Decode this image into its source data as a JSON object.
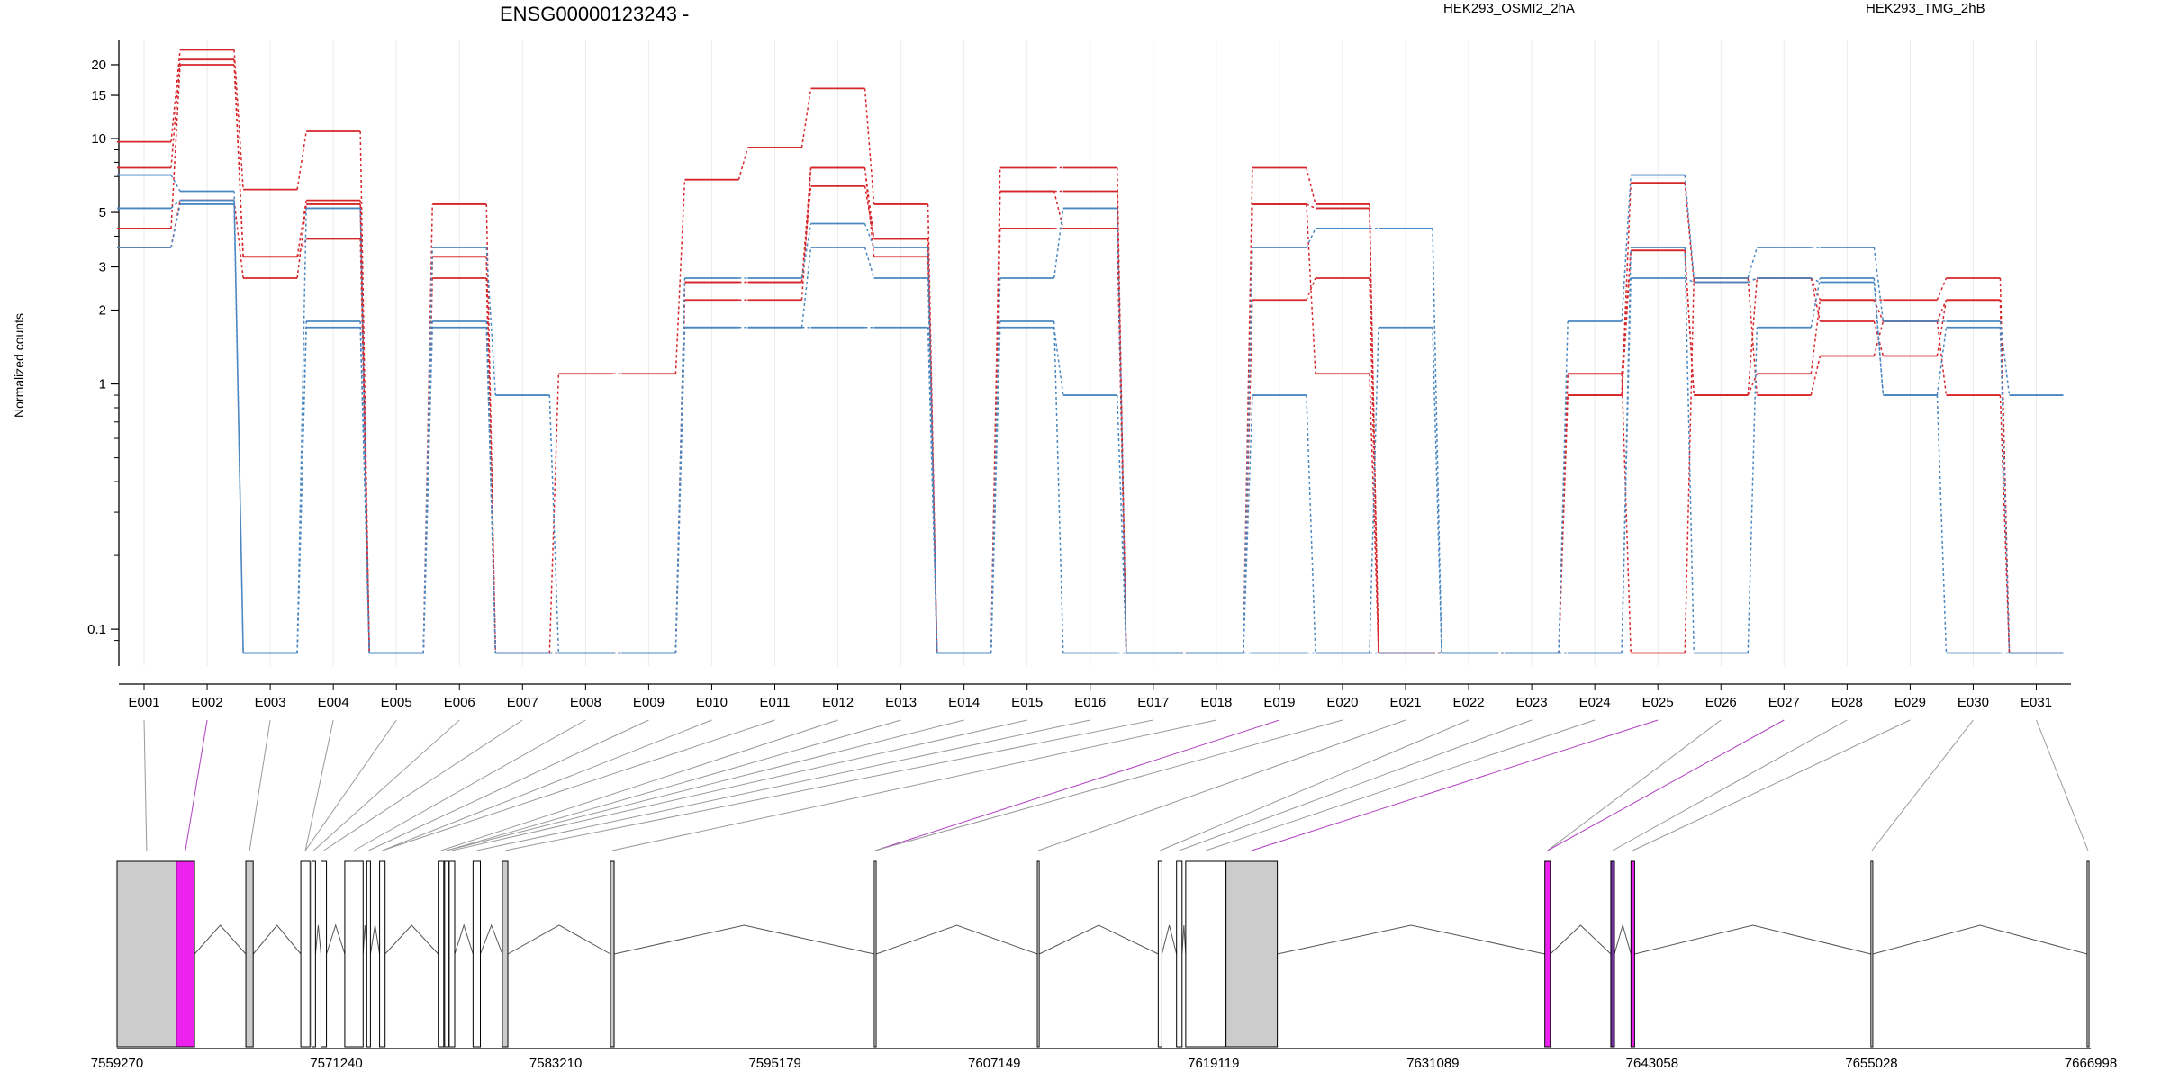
{
  "chart_data": {
    "type": "line",
    "title": "ENSG00000123243 -",
    "ylabel": "Normalized counts",
    "xlabel": "",
    "y_scale": "log",
    "ylim": [
      0.07,
      30
    ],
    "y_ticks": [
      "0.1",
      "1",
      "2",
      "3",
      "5",
      "10",
      "15",
      "20"
    ],
    "grid": "vertical",
    "legend": [
      {
        "name": "HEK293_OSMI2_2hA",
        "color": "#d7262b"
      },
      {
        "name": "HEK293_TMG_2hB",
        "color": "#4a87c0"
      }
    ],
    "categories": [
      "E001",
      "E002",
      "E003",
      "E004",
      "E005",
      "E006",
      "E007",
      "E008",
      "E009",
      "E010",
      "E011",
      "E012",
      "E013",
      "E014",
      "E015",
      "E016",
      "E017",
      "E018",
      "E019",
      "E020",
      "E021",
      "E022",
      "E023",
      "E024",
      "E025",
      "E026",
      "E027",
      "E028",
      "E029",
      "E030",
      "E031"
    ],
    "series": [
      {
        "group": "HEK293_OSMI2_2hA",
        "color": "#d7262b",
        "values": [
          9.7,
          23,
          6.2,
          10.7,
          0.08,
          5.4,
          0.08,
          1.1,
          1.1,
          6.8,
          9.2,
          16,
          5.4,
          0.08,
          7.6,
          7.6,
          0.08,
          0.08,
          7.6,
          5.4,
          0.08,
          0.08,
          0.08,
          1.1,
          3.5,
          0.9,
          1.1,
          2.2,
          2.2,
          2.7,
          0.08
        ]
      },
      {
        "group": "HEK293_OSMI2_2hA",
        "color": "#d7262b",
        "values": [
          7.6,
          21,
          3.3,
          5.6,
          0.08,
          3.3,
          0.08,
          0.08,
          0.08,
          2.2,
          2.2,
          7.6,
          3.3,
          0.08,
          6.1,
          6.1,
          0.08,
          0.08,
          5.4,
          5.2,
          0.08,
          0.08,
          0.08,
          0.9,
          6.6,
          2.6,
          2.7,
          1.8,
          1.3,
          2.2,
          0.08
        ]
      },
      {
        "group": "HEK293_OSMI2_2hA",
        "color": "#d7262b",
        "values": [
          4.3,
          20,
          3.3,
          3.9,
          0.08,
          2.7,
          0.08,
          0.08,
          0.08,
          2.6,
          2.6,
          6.4,
          3.9,
          0.08,
          4.3,
          4.3,
          0.08,
          0.08,
          2.2,
          2.7,
          0.08,
          0.08,
          0.08,
          1.1,
          0.08,
          2.7,
          0.9,
          1.3,
          1.8,
          2.2,
          0.08
        ]
      },
      {
        "group": "HEK293_OSMI2_2hA",
        "color": "#d7262b",
        "values": [
          3.6,
          5.6,
          2.7,
          5.4,
          0.08,
          3.3,
          0.08,
          0.08,
          0.08,
          2.6,
          2.6,
          7.6,
          3.9,
          0.08,
          6.1,
          4.3,
          0.08,
          0.08,
          5.4,
          1.1,
          0.08,
          0.08,
          0.08,
          0.9,
          3.5,
          0.9,
          2.7,
          2.2,
          1.8,
          0.9,
          0.08
        ]
      },
      {
        "group": "HEK293_TMG_2hB",
        "color": "#4a87c0",
        "values": [
          7.1,
          6.1,
          0.08,
          5.2,
          0.08,
          3.6,
          0.9,
          0.08,
          0.08,
          2.7,
          2.7,
          4.5,
          3.6,
          0.08,
          2.7,
          5.2,
          0.08,
          0.08,
          3.6,
          4.3,
          4.3,
          0.08,
          0.08,
          1.8,
          7.1,
          2.7,
          3.6,
          3.6,
          1.8,
          1.8,
          0.9
        ]
      },
      {
        "group": "HEK293_TMG_2hB",
        "color": "#4a87c0",
        "values": [
          5.2,
          5.6,
          0.08,
          1.8,
          0.08,
          1.8,
          0.08,
          0.08,
          0.08,
          1.7,
          1.7,
          1.7,
          1.7,
          0.08,
          1.7,
          0.9,
          0.08,
          0.08,
          0.08,
          0.08,
          0.08,
          0.08,
          0.08,
          0.08,
          3.6,
          0.08,
          1.7,
          2.7,
          0.9,
          1.7,
          0.08
        ]
      },
      {
        "group": "HEK293_TMG_2hB",
        "color": "#4a87c0",
        "values": [
          3.6,
          5.4,
          0.08,
          1.7,
          0.08,
          1.7,
          0.08,
          0.08,
          0.08,
          1.7,
          1.7,
          3.6,
          2.7,
          0.08,
          1.8,
          0.08,
          0.08,
          0.08,
          0.9,
          0.08,
          1.7,
          0.08,
          0.08,
          0.08,
          2.7,
          2.6,
          2.7,
          2.6,
          0.9,
          0.08,
          0.08
        ]
      }
    ],
    "gene_model": {
      "coordinate_ticks": [
        "7559270",
        "7571240",
        "7583210",
        "7595179",
        "7607149",
        "7619119",
        "7631089",
        "7643058",
        "7655028",
        "7666998"
      ],
      "xlim": [
        7559270,
        7666998
      ],
      "exons": [
        {
          "id": "E001",
          "start": 7559270,
          "end": 7562500,
          "fill": "#cccccc"
        },
        {
          "id": "E002",
          "start": 7562500,
          "end": 7563500,
          "fill": "#ee22ee"
        },
        {
          "id": "E003",
          "start": 7566300,
          "end": 7566700,
          "fill": "#cccccc"
        },
        {
          "id": "E004",
          "start": 7569300,
          "end": 7569800,
          "fill": "#ffffff"
        },
        {
          "id": "E005",
          "start": 7569900,
          "end": 7570100,
          "fill": "#ffffff"
        },
        {
          "id": "E006",
          "start": 7570400,
          "end": 7570700,
          "fill": "#ffffff"
        },
        {
          "id": "E007",
          "start": 7571700,
          "end": 7572700,
          "fill": "#ffffff"
        },
        {
          "id": "E008",
          "start": 7572900,
          "end": 7573100,
          "fill": "#ffffff"
        },
        {
          "id": "E009",
          "start": 7573600,
          "end": 7573900,
          "fill": "#ffffff"
        },
        {
          "id": "E010",
          "start": 7576800,
          "end": 7577100,
          "fill": "#ffffff"
        },
        {
          "id": "E011",
          "start": 7577150,
          "end": 7577350,
          "fill": "#ffffff"
        },
        {
          "id": "E012",
          "start": 7577400,
          "end": 7577700,
          "fill": "#ffffff"
        },
        {
          "id": "E013",
          "start": 7578700,
          "end": 7579100,
          "fill": "#ffffff"
        },
        {
          "id": "E014",
          "start": 7580300,
          "end": 7580600,
          "fill": "#cccccc"
        },
        {
          "id": "E015",
          "start": 7586200,
          "end": 7586400,
          "fill": "#cccccc"
        },
        {
          "id": "E016",
          "start": 7600600,
          "end": 7600700,
          "fill": "#ffffff"
        },
        {
          "id": "E017",
          "start": 7609500,
          "end": 7609600,
          "fill": "#ffffff"
        },
        {
          "id": "E018",
          "start": 7616100,
          "end": 7616300,
          "fill": "#ffffff"
        },
        {
          "id": "E019",
          "start": 7617100,
          "end": 7617400,
          "fill": "#ffffff"
        },
        {
          "id": "E020",
          "start": 7617600,
          "end": 7619800,
          "fill": "#ffffff"
        },
        {
          "id": "E021",
          "start": 7619800,
          "end": 7622600,
          "fill": "#cccccc"
        },
        {
          "id": "E022",
          "start": 7637200,
          "end": 7637500,
          "fill": "#ee22ee"
        },
        {
          "id": "E023",
          "start": 7640800,
          "end": 7641000,
          "fill": "#7030a0"
        },
        {
          "id": "E024",
          "start": 7641900,
          "end": 7642100,
          "fill": "#ee22ee"
        },
        {
          "id": "E025",
          "start": 7655000,
          "end": 7655100,
          "fill": "#ffffff"
        },
        {
          "id": "E026",
          "start": 7666800,
          "end": 7666900,
          "fill": "#ffffff"
        }
      ]
    }
  }
}
